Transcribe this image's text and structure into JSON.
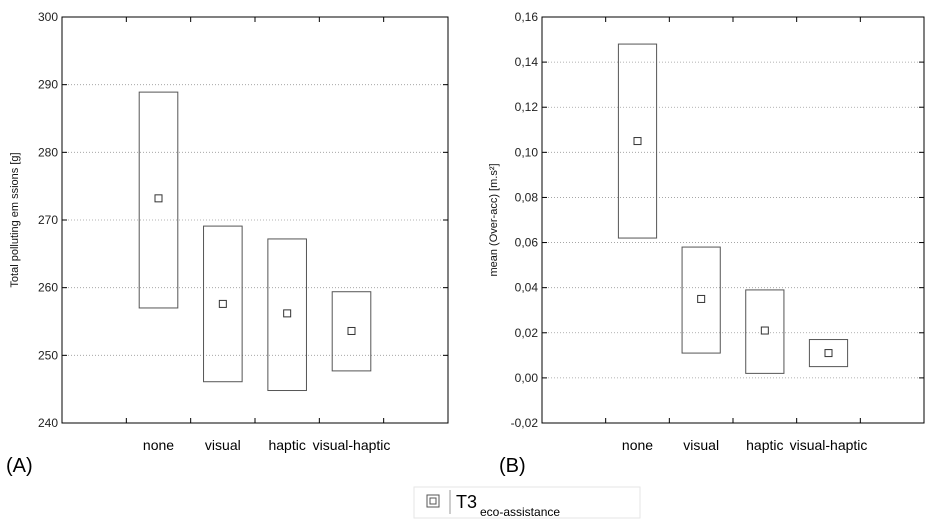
{
  "chart_data": [
    {
      "type": "box",
      "panel_label": "(A)",
      "ylabel": "Total polluting em ssions [g]",
      "ylim": [
        240,
        300
      ],
      "yticks": [
        "240",
        "250",
        "260",
        "270",
        "280",
        "290",
        "300"
      ],
      "categories": [
        "none",
        "visual",
        "haptic",
        "visual-haptic"
      ],
      "series": [
        {
          "name": "T3 eco-assistance",
          "mean": [
            273.2,
            257.6,
            256.2,
            253.6
          ],
          "low": [
            257.0,
            246.1,
            244.8,
            247.7
          ],
          "high": [
            288.9,
            269.1,
            267.2,
            259.4
          ]
        }
      ],
      "grid": true
    },
    {
      "type": "box",
      "panel_label": "(B)",
      "ylabel": "mean (Over-acc) [m.s²]",
      "ylim": [
        -0.02,
        0.16
      ],
      "yticks": [
        "-0,02",
        "0,00",
        "0,02",
        "0,04",
        "0,06",
        "0,08",
        "0,10",
        "0,12",
        "0,14",
        "0,16"
      ],
      "categories": [
        "none",
        "visual",
        "haptic",
        "visual-haptic"
      ],
      "series": [
        {
          "name": "T3 eco-assistance",
          "mean": [
            0.105,
            0.035,
            0.021,
            0.011
          ],
          "low": [
            0.062,
            0.011,
            0.002,
            0.005
          ],
          "high": [
            0.148,
            0.058,
            0.039,
            0.017
          ]
        }
      ],
      "grid": true
    }
  ],
  "legend": {
    "main": "T3",
    "sub": "eco-assistance",
    "placement": "bottom-center"
  }
}
